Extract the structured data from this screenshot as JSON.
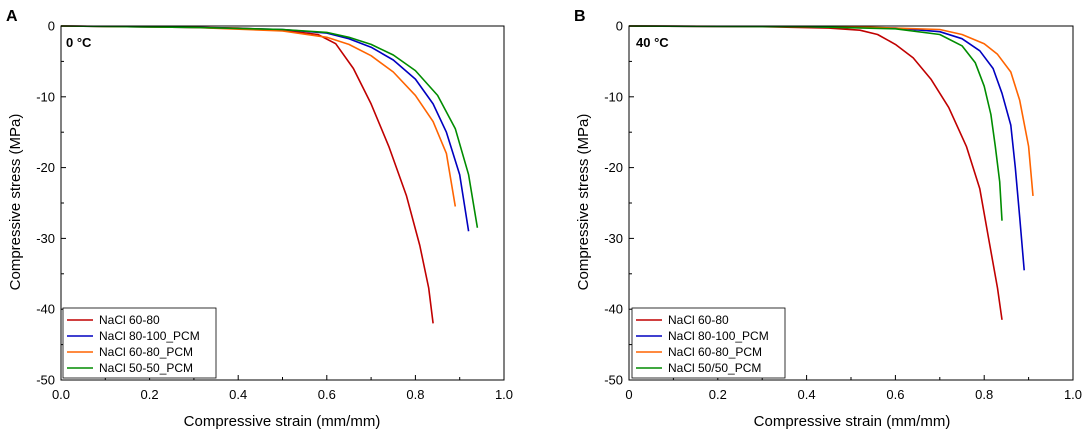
{
  "chart_data": [
    {
      "type": "line",
      "panel_label": "A",
      "annotation": "0 °C",
      "xlabel": "Compressive strain (mm/mm)",
      "ylabel": "Compressive stress (MPa)",
      "xlim": [
        0.0,
        1.0
      ],
      "ylim": [
        -50,
        0
      ],
      "xticks": [
        0.0,
        0.2,
        0.4,
        0.6,
        0.8,
        1.0
      ],
      "xtick_labels": [
        "0.0",
        "0.2",
        "0.4",
        "0.6",
        "0.8",
        "1.0"
      ],
      "yticks": [
        0,
        -10,
        -20,
        -30,
        -40,
        -50
      ],
      "ytick_labels": [
        "0",
        "-10",
        "-20",
        "-30",
        "-40",
        "-50"
      ],
      "legend_position": "bottom-left",
      "series": [
        {
          "name": "NaCl 60-80",
          "color": "#c00000",
          "points": [
            [
              0,
              0
            ],
            [
              0.2,
              -0.1
            ],
            [
              0.4,
              -0.3
            ],
            [
              0.5,
              -0.6
            ],
            [
              0.58,
              -1.2
            ],
            [
              0.62,
              -2.5
            ],
            [
              0.66,
              -6
            ],
            [
              0.7,
              -11
            ],
            [
              0.74,
              -17
            ],
            [
              0.78,
              -24
            ],
            [
              0.81,
              -31
            ],
            [
              0.83,
              -37
            ],
            [
              0.84,
              -42
            ]
          ]
        },
        {
          "name": "NaCl 80-100_PCM",
          "color": "#0000c0",
          "points": [
            [
              0,
              0
            ],
            [
              0.3,
              -0.2
            ],
            [
              0.5,
              -0.5
            ],
            [
              0.6,
              -1.0
            ],
            [
              0.65,
              -1.8
            ],
            [
              0.7,
              -3.0
            ],
            [
              0.75,
              -4.8
            ],
            [
              0.8,
              -7.5
            ],
            [
              0.84,
              -11
            ],
            [
              0.87,
              -15
            ],
            [
              0.9,
              -21
            ],
            [
              0.92,
              -29
            ]
          ]
        },
        {
          "name": "NaCl 60-80_PCM",
          "color": "#ff6400",
          "points": [
            [
              0,
              0
            ],
            [
              0.3,
              -0.2
            ],
            [
              0.5,
              -0.7
            ],
            [
              0.6,
              -1.6
            ],
            [
              0.65,
              -2.6
            ],
            [
              0.7,
              -4.2
            ],
            [
              0.75,
              -6.5
            ],
            [
              0.8,
              -9.8
            ],
            [
              0.84,
              -13.5
            ],
            [
              0.87,
              -18
            ],
            [
              0.89,
              -25.5
            ]
          ]
        },
        {
          "name": "NaCl 50-50_PCM",
          "color": "#008c00",
          "points": [
            [
              0,
              0
            ],
            [
              0.3,
              -0.2
            ],
            [
              0.5,
              -0.5
            ],
            [
              0.6,
              -0.9
            ],
            [
              0.65,
              -1.6
            ],
            [
              0.7,
              -2.6
            ],
            [
              0.75,
              -4.1
            ],
            [
              0.8,
              -6.3
            ],
            [
              0.85,
              -9.8
            ],
            [
              0.89,
              -14.5
            ],
            [
              0.92,
              -21
            ],
            [
              0.94,
              -28.5
            ]
          ]
        }
      ]
    },
    {
      "type": "line",
      "panel_label": "B",
      "annotation": "40 °C",
      "xlabel": "Compressive strain (mm/mm)",
      "ylabel": "Compressive stress (MPa)",
      "xlim": [
        0.0,
        1.0
      ],
      "ylim": [
        -50,
        0
      ],
      "xticks": [
        0.0,
        0.2,
        0.4,
        0.6,
        0.8,
        1.0
      ],
      "xtick_labels": [
        "0",
        "0.2",
        "0.4",
        "0.6",
        "0.8",
        "1.0"
      ],
      "yticks": [
        0,
        -10,
        -20,
        -30,
        -40,
        -50
      ],
      "ytick_labels": [
        "0",
        "-10",
        "-20",
        "-30",
        "-40",
        "-50"
      ],
      "legend_position": "bottom-left",
      "series": [
        {
          "name": "NaCl 60-80",
          "color": "#c00000",
          "points": [
            [
              0,
              0
            ],
            [
              0.3,
              -0.1
            ],
            [
              0.45,
              -0.3
            ],
            [
              0.52,
              -0.6
            ],
            [
              0.56,
              -1.2
            ],
            [
              0.6,
              -2.6
            ],
            [
              0.64,
              -4.5
            ],
            [
              0.68,
              -7.5
            ],
            [
              0.72,
              -11.5
            ],
            [
              0.76,
              -17
            ],
            [
              0.79,
              -23
            ],
            [
              0.81,
              -30
            ],
            [
              0.83,
              -37
            ],
            [
              0.84,
              -41.5
            ]
          ]
        },
        {
          "name": "NaCl 80-100_PCM",
          "color": "#0000c0",
          "points": [
            [
              0,
              0
            ],
            [
              0.4,
              -0.1
            ],
            [
              0.6,
              -0.3
            ],
            [
              0.7,
              -0.8
            ],
            [
              0.75,
              -1.8
            ],
            [
              0.79,
              -3.5
            ],
            [
              0.82,
              -6
            ],
            [
              0.84,
              -9.5
            ],
            [
              0.86,
              -14
            ],
            [
              0.87,
              -20
            ],
            [
              0.88,
              -27
            ],
            [
              0.89,
              -34.5
            ]
          ]
        },
        {
          "name": "NaCl 60-80_PCM",
          "color": "#ff6400",
          "points": [
            [
              0,
              0
            ],
            [
              0.5,
              -0.1
            ],
            [
              0.7,
              -0.5
            ],
            [
              0.75,
              -1.2
            ],
            [
              0.8,
              -2.5
            ],
            [
              0.83,
              -4
            ],
            [
              0.86,
              -6.5
            ],
            [
              0.88,
              -10.5
            ],
            [
              0.9,
              -17
            ],
            [
              0.91,
              -24
            ]
          ]
        },
        {
          "name": "NaCl 50/50_PCM",
          "color": "#008c00",
          "points": [
            [
              0,
              0
            ],
            [
              0.4,
              -0.1
            ],
            [
              0.6,
              -0.4
            ],
            [
              0.7,
              -1.2
            ],
            [
              0.75,
              -2.8
            ],
            [
              0.78,
              -5.2
            ],
            [
              0.8,
              -8.5
            ],
            [
              0.815,
              -12.5
            ],
            [
              0.825,
              -17
            ],
            [
              0.835,
              -22
            ],
            [
              0.84,
              -27.5
            ]
          ]
        }
      ]
    }
  ]
}
